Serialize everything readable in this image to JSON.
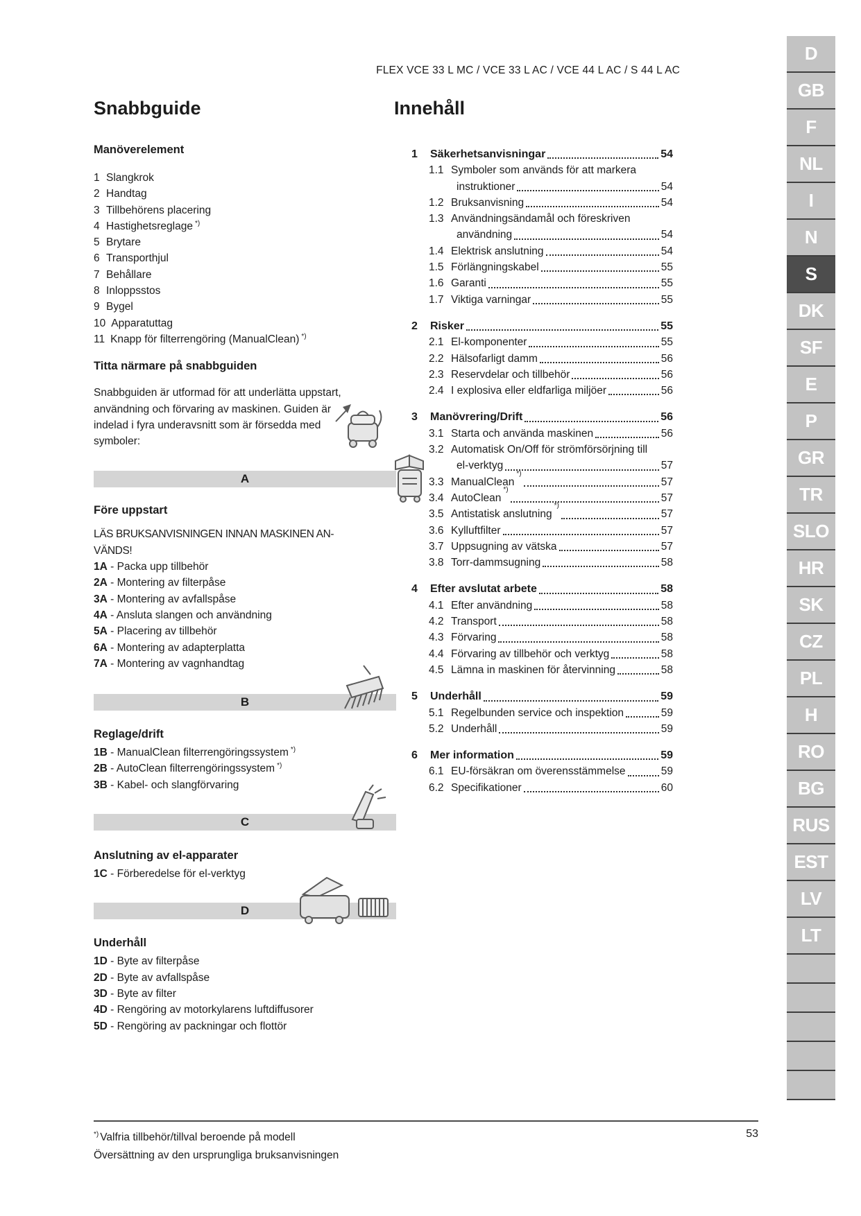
{
  "page": {
    "header_models": "FLEX VCE 33 L MC / VCE 33 L AC / VCE 44 L AC / S 44 L AC",
    "page_number": "53",
    "footnotes": [
      {
        "sup": "*)",
        "text": "Valfria tillbehör/tillval beroende på modell"
      },
      {
        "text": "Översättning av den ursprungliga bruksanvisningen"
      }
    ]
  },
  "quick_guide": {
    "title": "Snabbguide",
    "controls": {
      "heading": "Manöverelement",
      "items": [
        {
          "num": "1",
          "text": "Slangkrok"
        },
        {
          "num": "2",
          "text": "Handtag"
        },
        {
          "num": "3",
          "text": "Tillbehörens placering"
        },
        {
          "num": "4",
          "text": "Hastighetsreglage",
          "sup": "*)"
        },
        {
          "num": "5",
          "text": "Brytare"
        },
        {
          "num": "6",
          "text": "Transporthjul"
        },
        {
          "num": "7",
          "text": "Behållare"
        },
        {
          "num": "8",
          "text": "Inloppsstos"
        },
        {
          "num": "9",
          "text": "Bygel"
        },
        {
          "num": "10",
          "text": "Apparatuttag"
        },
        {
          "num": "11",
          "text": "Knapp för filterrengöring (ManualClean)",
          "sup": "*)"
        }
      ]
    },
    "about": {
      "heading": "Titta närmare på snabbguiden",
      "lines": [
        "Snabbguiden är utformad för att underlätta uppstart,",
        "användning och förvaring av maskinen. Guiden är",
        "indelad i fyra underavsnitt som är försedda med",
        "symboler:"
      ]
    },
    "sections": [
      {
        "bar": "A",
        "heading": "Före uppstart",
        "intro_lines": [
          "LÄS BRUKSANVISNINGEN INNAN MASKINEN AN-",
          "VÄNDS!"
        ],
        "steps": [
          {
            "num": "1A",
            "text": "Packa upp tillbehör"
          },
          {
            "num": "2A",
            "text": "Montering av filterpåse"
          },
          {
            "num": "3A",
            "text": "Montering av avfallspåse"
          },
          {
            "num": "4A",
            "text": "Ansluta slangen och användning"
          },
          {
            "num": "5A",
            "text": "Placering av tillbehör"
          },
          {
            "num": "6A",
            "text": "Montering av adapterplatta"
          },
          {
            "num": "7A",
            "text": "Montering av vagnhandtag"
          }
        ]
      },
      {
        "bar": "B",
        "heading": "Reglage/drift",
        "steps": [
          {
            "num": "1B",
            "text": "ManualClean filterrengöringssystem",
            "sup": "*)"
          },
          {
            "num": "2B",
            "text": "AutoClean filterrengöringssystem",
            "sup": "*)"
          },
          {
            "num": "3B",
            "text": "Kabel- och slangförvaring"
          }
        ]
      },
      {
        "bar": "C",
        "heading": "Anslutning av el-apparater",
        "steps": [
          {
            "num": "1C",
            "text": "Förberedelse för el-verktyg"
          }
        ]
      },
      {
        "bar": "D",
        "heading": "Underhåll",
        "steps": [
          {
            "num": "1D",
            "text": "Byte av filterpåse"
          },
          {
            "num": "2D",
            "text": "Byte av avfallspåse"
          },
          {
            "num": "3D",
            "text": "Byte av filter"
          },
          {
            "num": "4D",
            "text": "Rengöring av motorkylarens luftdiffusorer"
          },
          {
            "num": "5D",
            "text": "Rengöring av packningar och flottör"
          }
        ]
      }
    ]
  },
  "toc": {
    "title": "Innehåll",
    "sections": [
      {
        "num": "1",
        "title": "Säkerhetsanvisningar",
        "page": "54",
        "items": [
          {
            "num": "1.1",
            "lines": [
              "Symboler som används för att markera",
              "instruktioner"
            ],
            "page": "54"
          },
          {
            "num": "1.2",
            "lines": [
              "Bruksanvisning"
            ],
            "page": "54"
          },
          {
            "num": "1.3",
            "lines": [
              "Användningsändamål och föreskriven",
              "användning"
            ],
            "page": "54"
          },
          {
            "num": "1.4",
            "lines": [
              "Elektrisk anslutning"
            ],
            "page": "54"
          },
          {
            "num": "1.5",
            "lines": [
              "Förlängningskabel"
            ],
            "page": "55"
          },
          {
            "num": "1.6",
            "lines": [
              "Garanti"
            ],
            "page": "55"
          },
          {
            "num": "1.7",
            "lines": [
              "Viktiga varningar"
            ],
            "page": "55"
          }
        ]
      },
      {
        "num": "2",
        "title": "Risker",
        "page": "55",
        "items": [
          {
            "num": "2.1",
            "lines": [
              "El-komponenter"
            ],
            "page": "55"
          },
          {
            "num": "2.2",
            "lines": [
              "Hälsofarligt damm"
            ],
            "page": "56"
          },
          {
            "num": "2.3",
            "lines": [
              "Reservdelar och tillbehör"
            ],
            "page": "56"
          },
          {
            "num": "2.4",
            "lines": [
              "I explosiva eller eldfarliga miljöer"
            ],
            "page": "56"
          }
        ]
      },
      {
        "num": "3",
        "title": "Manövrering/Drift",
        "page": "56",
        "items": [
          {
            "num": "3.1",
            "lines": [
              "Starta och använda maskinen"
            ],
            "page": "56"
          },
          {
            "num": "3.2",
            "lines": [
              "Automatisk On/Off för strömförsörjning till",
              "el-verktyg"
            ],
            "page": "57"
          },
          {
            "num": "3.3",
            "lines": [
              "ManualClean"
            ],
            "sup": "*)",
            "page": "57"
          },
          {
            "num": "3.4",
            "lines": [
              "AutoClean"
            ],
            "sup": "*)",
            "page": "57"
          },
          {
            "num": "3.5",
            "lines": [
              "Antistatisk anslutning"
            ],
            "sup": "*)",
            "page": "57"
          },
          {
            "num": "3.6",
            "lines": [
              "Kylluftfilter"
            ],
            "page": "57"
          },
          {
            "num": "3.7",
            "lines": [
              "Uppsugning av vätska"
            ],
            "page": "57"
          },
          {
            "num": "3.8",
            "lines": [
              "Torr-dammsugning"
            ],
            "page": "58"
          }
        ]
      },
      {
        "num": "4",
        "title": "Efter avslutat arbete",
        "page": "58",
        "items": [
          {
            "num": "4.1",
            "lines": [
              "Efter användning"
            ],
            "page": "58"
          },
          {
            "num": "4.2",
            "lines": [
              "Transport"
            ],
            "page": "58"
          },
          {
            "num": "4.3",
            "lines": [
              "Förvaring"
            ],
            "page": "58"
          },
          {
            "num": "4.4",
            "lines": [
              "Förvaring av tillbehör och verktyg"
            ],
            "page": "58"
          },
          {
            "num": "4.5",
            "lines": [
              "Lämna in maskinen för återvinning"
            ],
            "page": "58"
          }
        ]
      },
      {
        "num": "5",
        "title": "Underhåll",
        "page": "59",
        "items": [
          {
            "num": "5.1",
            "lines": [
              "Regelbunden service och inspektion"
            ],
            "page": "59"
          },
          {
            "num": "5.2",
            "lines": [
              "Underhåll"
            ],
            "page": "59"
          }
        ]
      },
      {
        "num": "6",
        "title": "Mer information",
        "page": "59",
        "items": [
          {
            "num": "6.1",
            "lines": [
              "EU-försäkran om överensstämmelse"
            ],
            "page": "59"
          },
          {
            "num": "6.2",
            "lines": [
              "Specifikationer"
            ],
            "page": "60"
          }
        ]
      }
    ]
  },
  "language_tabs": {
    "active": "S",
    "tabs": [
      "D",
      "GB",
      "F",
      "NL",
      "I",
      "N",
      "S",
      "DK",
      "SF",
      "E",
      "P",
      "GR",
      "TR",
      "SLO",
      "HR",
      "SK",
      "CZ",
      "PL",
      "H",
      "RO",
      "BG",
      "RUS",
      "EST",
      "LV",
      "LT"
    ],
    "empty_cells": 5
  },
  "colors": {
    "bar_background": "#d4d4d4",
    "tab_background": "#c3c3c3",
    "tab_active_background": "#4d4d4d",
    "tab_separator": "#3e3e3e",
    "text": "#1c1c1c"
  }
}
